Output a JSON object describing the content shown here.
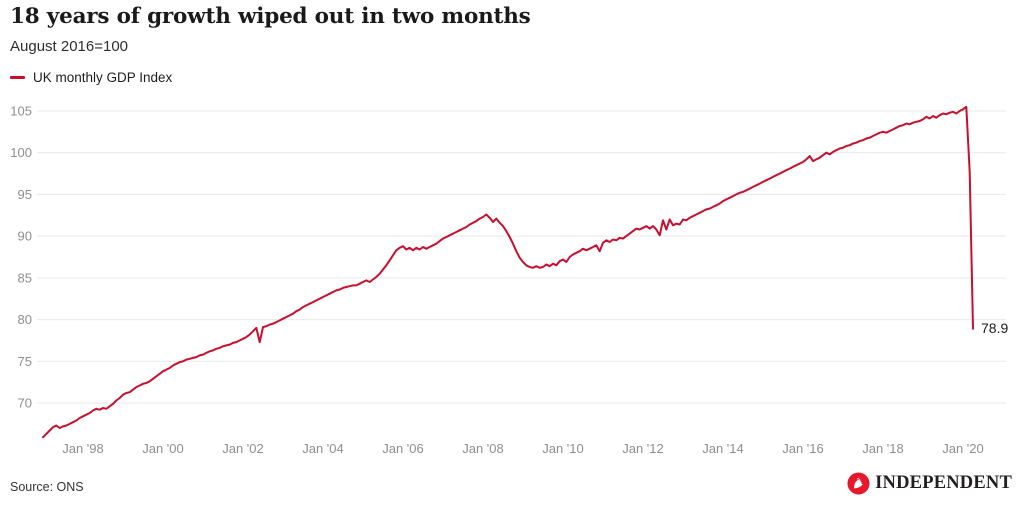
{
  "header": {
    "title": "18 years of growth wiped out in two months",
    "subtitle": "August 2016=100"
  },
  "legend": {
    "series_label": "UK monthly GDP Index",
    "color": "#c8102e"
  },
  "footer": {
    "source": "Source: ONS",
    "logo_text": "INDEPENDENT",
    "logo_color": "#e8182c"
  },
  "chart_data": {
    "type": "line",
    "title": "18 years of growth wiped out in two months",
    "subtitle": "August 2016=100",
    "grid": true,
    "legend_position": "top-left",
    "line_color": "#c8102e",
    "end_label": "78.9",
    "ylim": [
      64.5,
      107
    ],
    "yticks": [
      70,
      75,
      80,
      85,
      90,
      95,
      100,
      105
    ],
    "xticks": [
      {
        "label": "Jan '98",
        "month_index": 12
      },
      {
        "label": "Jan '00",
        "month_index": 36
      },
      {
        "label": "Jan '02",
        "month_index": 60
      },
      {
        "label": "Jan '04",
        "month_index": 84
      },
      {
        "label": "Jan '06",
        "month_index": 108
      },
      {
        "label": "Jan '08",
        "month_index": 132
      },
      {
        "label": "Jan '10",
        "month_index": 156
      },
      {
        "label": "Jan '12",
        "month_index": 180
      },
      {
        "label": "Jan '14",
        "month_index": 204
      },
      {
        "label": "Jan '16",
        "month_index": 228
      },
      {
        "label": "Jan '18",
        "month_index": 252
      },
      {
        "label": "Jan '20",
        "month_index": 276
      }
    ],
    "series": [
      {
        "name": "UK monthly GDP Index",
        "start": "Jan 1997",
        "end": "Apr 2020",
        "frequency": "monthly",
        "values": [
          65.9,
          66.3,
          66.7,
          67.1,
          67.3,
          67.0,
          67.2,
          67.3,
          67.5,
          67.7,
          67.9,
          68.2,
          68.4,
          68.6,
          68.8,
          69.1,
          69.3,
          69.2,
          69.4,
          69.3,
          69.6,
          69.9,
          70.3,
          70.6,
          71.0,
          71.2,
          71.3,
          71.6,
          71.9,
          72.1,
          72.3,
          72.4,
          72.6,
          72.9,
          73.2,
          73.5,
          73.8,
          74.0,
          74.2,
          74.5,
          74.7,
          74.9,
          75.0,
          75.2,
          75.3,
          75.4,
          75.5,
          75.7,
          75.8,
          76.0,
          76.2,
          76.3,
          76.5,
          76.6,
          76.8,
          76.9,
          77.0,
          77.2,
          77.3,
          77.5,
          77.7,
          77.9,
          78.2,
          78.6,
          79.0,
          77.3,
          79.1,
          79.2,
          79.4,
          79.5,
          79.7,
          79.9,
          80.1,
          80.3,
          80.5,
          80.7,
          81.0,
          81.2,
          81.5,
          81.7,
          81.9,
          82.1,
          82.3,
          82.5,
          82.7,
          82.9,
          83.1,
          83.3,
          83.5,
          83.6,
          83.8,
          83.9,
          84.0,
          84.1,
          84.1,
          84.3,
          84.5,
          84.7,
          84.5,
          84.8,
          85.1,
          85.5,
          86.0,
          86.5,
          87.1,
          87.7,
          88.3,
          88.6,
          88.8,
          88.4,
          88.6,
          88.3,
          88.6,
          88.4,
          88.7,
          88.5,
          88.7,
          88.9,
          89.1,
          89.4,
          89.7,
          89.9,
          90.1,
          90.3,
          90.5,
          90.7,
          90.9,
          91.1,
          91.4,
          91.6,
          91.8,
          92.1,
          92.3,
          92.6,
          92.2,
          91.7,
          92.1,
          91.6,
          91.2,
          90.6,
          89.9,
          89.1,
          88.2,
          87.4,
          86.9,
          86.5,
          86.3,
          86.2,
          86.4,
          86.2,
          86.3,
          86.6,
          86.4,
          86.7,
          86.5,
          87.0,
          87.2,
          86.9,
          87.5,
          87.8,
          88.0,
          88.2,
          88.5,
          88.3,
          88.5,
          88.7,
          88.9,
          88.2,
          89.2,
          89.5,
          89.3,
          89.6,
          89.5,
          89.8,
          89.7,
          90.0,
          90.3,
          90.6,
          90.9,
          90.8,
          91.0,
          91.2,
          90.9,
          91.2,
          90.8,
          90.1,
          91.9,
          90.8,
          92.0,
          91.3,
          91.5,
          91.4,
          92.0,
          91.9,
          92.2,
          92.4,
          92.6,
          92.8,
          93.0,
          93.2,
          93.3,
          93.5,
          93.7,
          93.9,
          94.2,
          94.4,
          94.6,
          94.8,
          95.0,
          95.2,
          95.3,
          95.5,
          95.7,
          95.9,
          96.1,
          96.3,
          96.5,
          96.7,
          96.9,
          97.1,
          97.3,
          97.5,
          97.7,
          97.9,
          98.1,
          98.3,
          98.5,
          98.7,
          98.9,
          99.2,
          99.6,
          99.0,
          99.2,
          99.4,
          99.7,
          100.0,
          99.8,
          100.1,
          100.3,
          100.5,
          100.6,
          100.8,
          100.9,
          101.1,
          101.2,
          101.4,
          101.5,
          101.7,
          101.8,
          102.0,
          102.2,
          102.4,
          102.5,
          102.4,
          102.6,
          102.8,
          103.0,
          103.2,
          103.3,
          103.5,
          103.4,
          103.6,
          103.7,
          103.8,
          104.0,
          104.3,
          104.1,
          104.4,
          104.2,
          104.5,
          104.7,
          104.6,
          104.8,
          104.9,
          104.7,
          105.0,
          105.2,
          105.5,
          97.7,
          78.9
        ]
      }
    ]
  }
}
